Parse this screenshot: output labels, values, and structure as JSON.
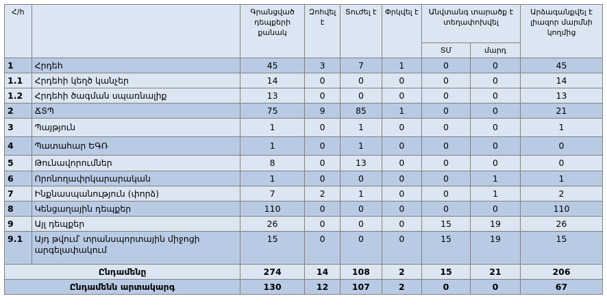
{
  "table": {
    "headers": {
      "num": "Հ/հ",
      "name": "",
      "registered": "Գրանցված դեպքերի քանակ",
      "killed": "Զոհվել է",
      "injured": "Տուժել է",
      "rescued": "Փրկվել է",
      "missing": "Անվտանգ տարածք է տեղափոխվել",
      "missing_sub1": "ՏՄ",
      "missing_sub2": "մարդ",
      "eliminated": "Արձագանքվել է լիազոր մարմնի կողմից"
    },
    "rows": [
      {
        "num": "1",
        "name": "Հրդեհ",
        "c1": "45",
        "c2": "3",
        "c3": "7",
        "c4": "1",
        "c5": "0",
        "c6": "0",
        "c7": "45"
      },
      {
        "num": "1.1",
        "name": "Հրդեհի կեղծ կանչեր",
        "c1": "14",
        "c2": "0",
        "c3": "0",
        "c4": "0",
        "c5": "0",
        "c6": "0",
        "c7": "14"
      },
      {
        "num": "1.2",
        "name": "Հրդեհի ծագման սպառնալիք",
        "c1": "13",
        "c2": "0",
        "c3": "0",
        "c4": "0",
        "c5": "0",
        "c6": "0",
        "c7": "13"
      },
      {
        "num": "2",
        "name": "ՃՏՊ",
        "c1": "75",
        "c2": "9",
        "c3": "85",
        "c4": "1",
        "c5": "0",
        "c6": "0",
        "c7": "21"
      },
      {
        "num": "3",
        "name": "Պայթյուն",
        "c1": "1",
        "c2": "0",
        "c3": "1",
        "c4": "0",
        "c5": "0",
        "c6": "0",
        "c7": "1"
      },
      {
        "num": "4",
        "name": "Պատահար ԵԳՌ",
        "c1": "1",
        "c2": "0",
        "c3": "1",
        "c4": "0",
        "c5": "0",
        "c6": "0",
        "c7": "0"
      },
      {
        "num": "5",
        "name": "Թունավորումներ",
        "c1": "8",
        "c2": "0",
        "c3": "13",
        "c4": "0",
        "c5": "0",
        "c6": "0",
        "c7": "0"
      },
      {
        "num": "6",
        "name": "Որոնողափրկարարական",
        "c1": "1",
        "c2": "0",
        "c3": "0",
        "c4": "0",
        "c5": "0",
        "c6": "1",
        "c7": "1"
      },
      {
        "num": "7",
        "name": "Ինքնասպանություն (փորձ)",
        "c1": "7",
        "c2": "2",
        "c3": "1",
        "c4": "0",
        "c5": "0",
        "c6": "1",
        "c7": "2"
      },
      {
        "num": "8",
        "name": "Կենցաղային դեպքեր",
        "c1": "110",
        "c2": "0",
        "c3": "0",
        "c4": "0",
        "c5": "0",
        "c6": "0",
        "c7": "110"
      },
      {
        "num": "9",
        "name": "Այլ դեպքեր",
        "c1": "26",
        "c2": "0",
        "c3": "0",
        "c4": "0",
        "c5": "15",
        "c6": "19",
        "c7": "26"
      },
      {
        "num": "9.1",
        "name": "Այդ թվում՝ տրանսպորտային միջոցի արգելափակում",
        "c1": "15",
        "c2": "0",
        "c3": "0",
        "c4": "0",
        "c5": "15",
        "c6": "19",
        "c7": "15"
      }
    ],
    "totals": [
      {
        "label": "Ընդամենը",
        "c1": "274",
        "c2": "14",
        "c3": "108",
        "c4": "2",
        "c5": "15",
        "c6": "21",
        "c7": "206"
      },
      {
        "label": "Ընդամենն արտակարգ",
        "c1": "130",
        "c2": "12",
        "c3": "107",
        "c4": "2",
        "c5": "0",
        "c6": "0",
        "c7": "67"
      }
    ]
  }
}
